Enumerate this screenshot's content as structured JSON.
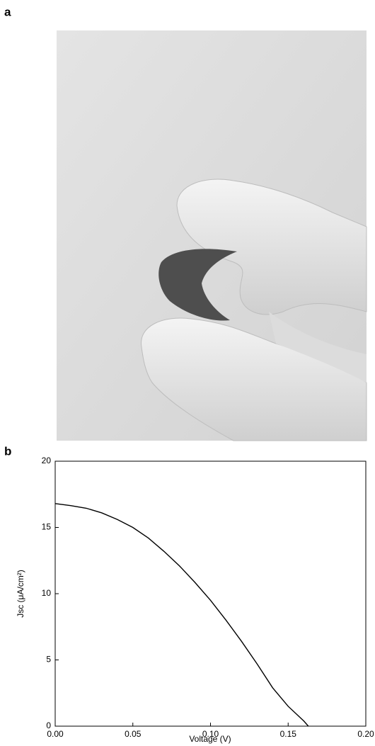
{
  "panel_labels": [
    "a",
    "b"
  ],
  "chart_data": {
    "type": "line",
    "x_label": "Voltage (V)",
    "y_label": "Jsc (μA/cm²)",
    "x": [
      0,
      0.01,
      0.02,
      0.03,
      0.04,
      0.05,
      0.06,
      0.07,
      0.08,
      0.09,
      0.1,
      0.11,
      0.12,
      0.13,
      0.14,
      0.15,
      0.16,
      0.163
    ],
    "series": [
      {
        "color": "#000000",
        "values": [
          16.8,
          16.65,
          16.45,
          16.1,
          15.6,
          15.0,
          14.2,
          13.2,
          12.1,
          10.85,
          9.5,
          8.0,
          6.4,
          4.7,
          2.9,
          1.5,
          0.4,
          0
        ]
      }
    ],
    "xlim": [
      0,
      0.2
    ],
    "xticks": [
      {
        "value": 0,
        "label": "0.00"
      },
      {
        "value": 0.05,
        "label": "0.05"
      },
      {
        "value": 0.1,
        "label": "0.10"
      },
      {
        "value": 0.15,
        "label": "0.15"
      },
      {
        "value": 0.2,
        "label": "0.20"
      }
    ],
    "ylim": [
      0,
      20
    ],
    "yticks": [
      0,
      5,
      10,
      15,
      20
    ]
  }
}
